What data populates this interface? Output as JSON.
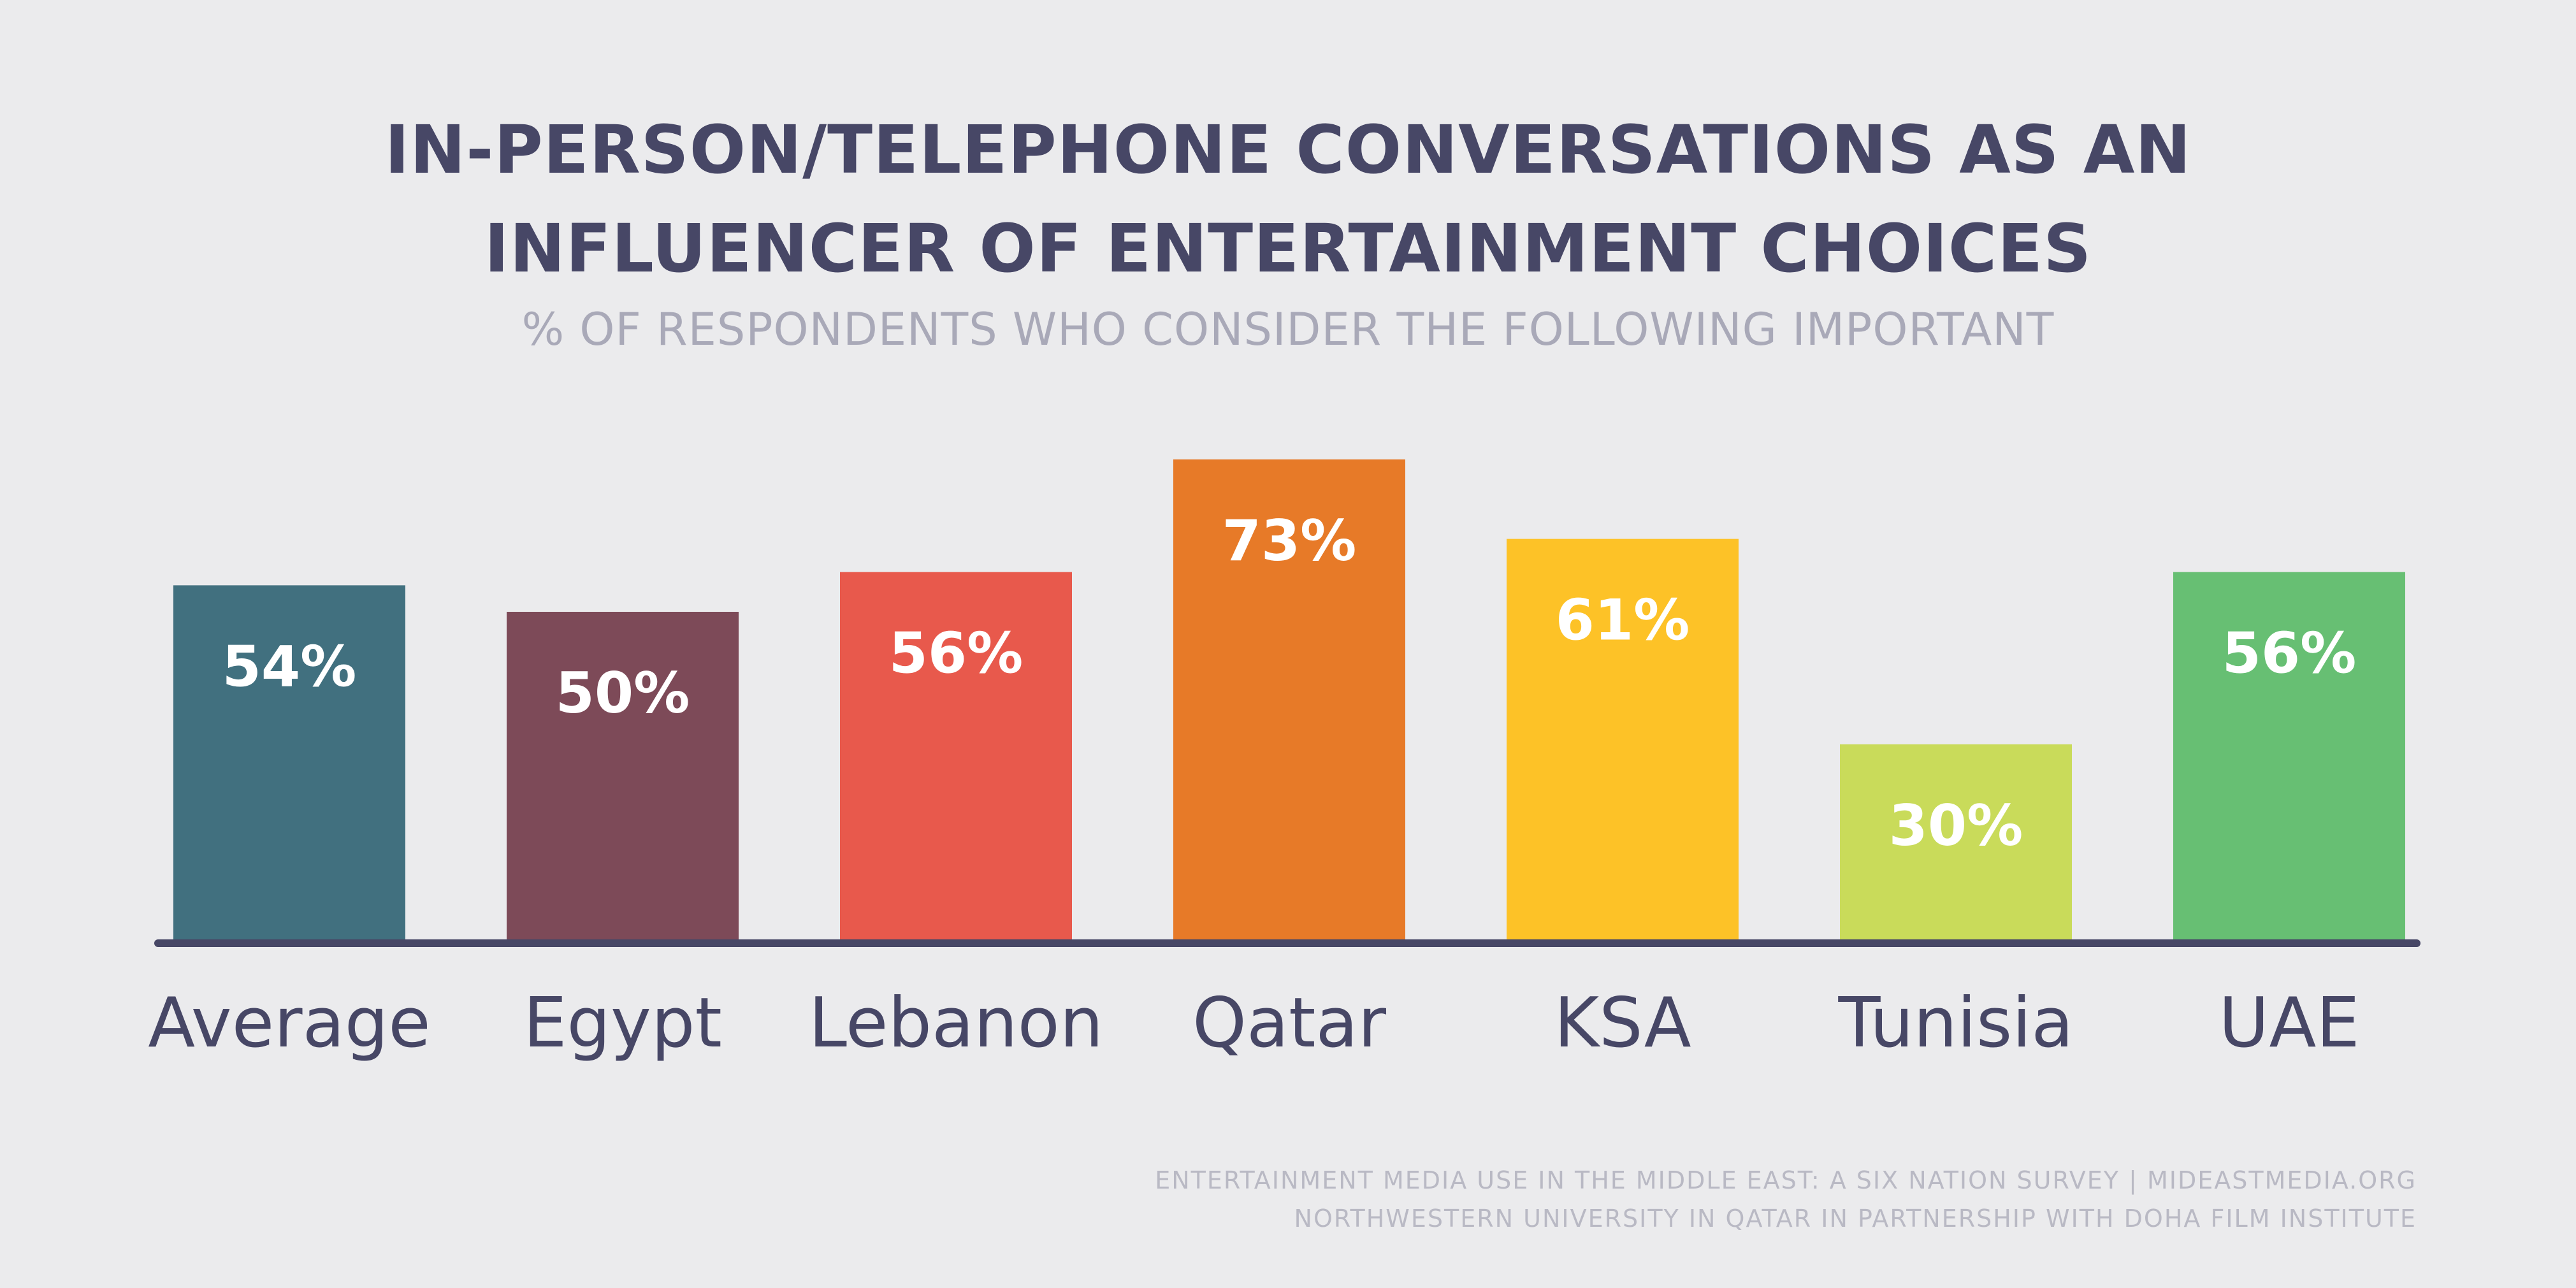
{
  "chart_data": {
    "type": "bar",
    "title": [
      "IN-PERSON/TELEPHONE CONVERSATIONS AS AN",
      "INFLUENCER OF ENTERTAINMENT CHOICES"
    ],
    "subtitle": "% OF RESPONDENTS WHO CONSIDER THE FOLLOWING IMPORTANT",
    "categories": [
      "Average",
      "Egypt",
      "Lebanon",
      "Qatar",
      "KSA",
      "Tunisia",
      "UAE"
    ],
    "values": [
      54,
      50,
      56,
      73,
      61,
      30,
      56
    ],
    "data_labels": [
      "54%",
      "50%",
      "56%",
      "73%",
      "61%",
      "30%",
      "56%"
    ],
    "colors": [
      "#41707f",
      "#7d4a58",
      "#e8594c",
      "#e77a28",
      "#fdc227",
      "#c9db5a",
      "#67bf73"
    ],
    "axis_color": "#474766",
    "label_color": "#474766",
    "data_label_color": "#ffffff",
    "ylim": [
      0,
      100
    ],
    "grid": false,
    "legend": "none",
    "xlabel": "",
    "ylabel": ""
  },
  "source": {
    "line1": "ENTERTAINMENT MEDIA USE IN THE MIDDLE EAST: A SIX NATION SURVEY | MIDEASTMEDIA.ORG",
    "line2": "NORTHWESTERN UNIVERSITY IN QATAR IN PARTNERSHIP WITH DOHA FILM INSTITUTE"
  }
}
